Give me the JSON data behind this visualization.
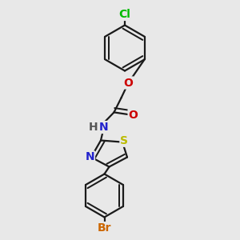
{
  "bg_color": "#e8e8e8",
  "bond_color": "#1a1a1a",
  "bond_width": 1.6,
  "fig_width": 3.0,
  "fig_height": 3.0,
  "dpi": 100,
  "colors": {
    "Cl": "#00bb00",
    "O": "#cc0000",
    "N": "#2222cc",
    "H": "#555555",
    "S": "#bbbb00",
    "Br": "#cc6600",
    "C": "#1a1a1a"
  }
}
